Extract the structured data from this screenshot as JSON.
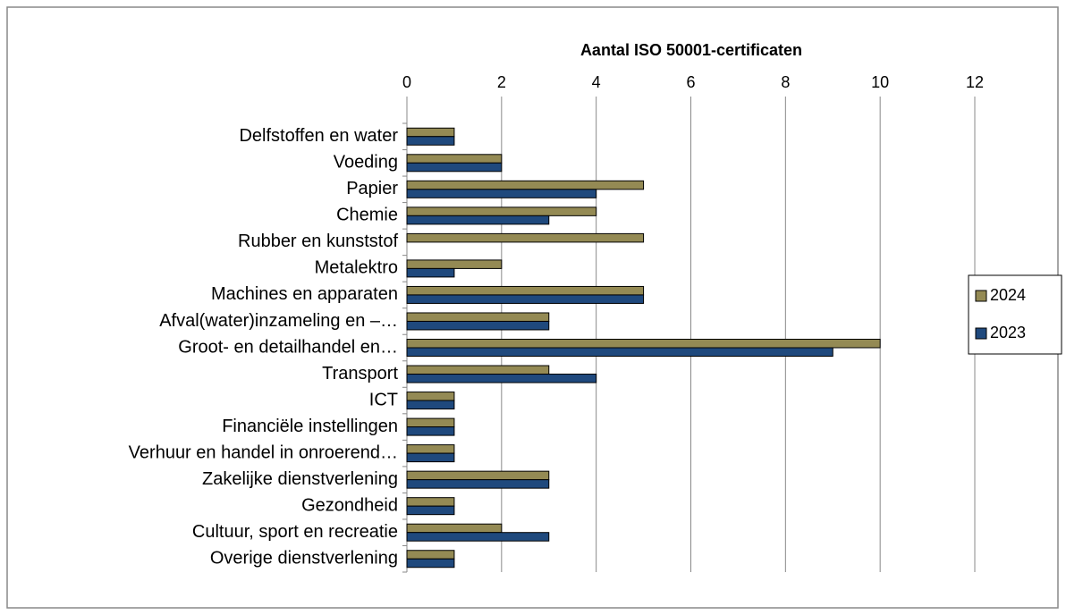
{
  "chart_data": {
    "type": "bar",
    "orientation": "horizontal",
    "title": "Aantal ISO 50001-certificaten",
    "categories": [
      "Delfstoffen en water",
      "Voeding",
      "Papier",
      "Chemie",
      "Rubber en kunststof",
      "Metalektro",
      "Machines en apparaten",
      "Afval(water)inzameling en –…",
      "Groot- en detailhandel en…",
      "Transport",
      "ICT",
      "Financiële instellingen",
      "Verhuur en handel in onroerend…",
      "Zakelijke dienstverlening",
      "Gezondheid",
      "Cultuur, sport en recreatie",
      "Overige dienstverlening"
    ],
    "series": [
      {
        "name": "2024",
        "color": "#948a54",
        "values": [
          1,
          2,
          5,
          4,
          5,
          2,
          5,
          3,
          10,
          3,
          1,
          1,
          1,
          3,
          1,
          2,
          1
        ]
      },
      {
        "name": "2023",
        "color": "#1f497d",
        "values": [
          1,
          2,
          4,
          3,
          0,
          1,
          5,
          3,
          9,
          4,
          1,
          1,
          1,
          3,
          1,
          3,
          1
        ]
      }
    ],
    "xlim": [
      0,
      12
    ],
    "xticks": [
      0,
      2,
      4,
      6,
      8,
      10,
      12
    ],
    "grid": true,
    "legend": "right"
  }
}
